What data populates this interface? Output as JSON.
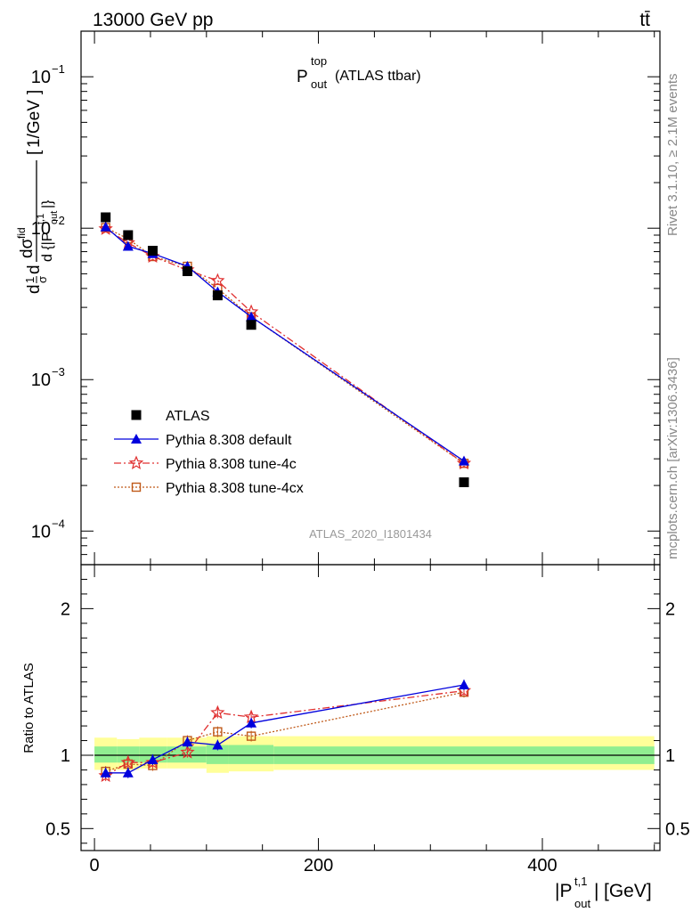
{
  "header": {
    "energy_label": "13000 GeV pp",
    "process_label": "tt̄"
  },
  "plot_title": {
    "main": "P",
    "sup": "top",
    "sub": "out",
    "suffix": "(ATLAS ttbar)"
  },
  "side_labels": {
    "rivet": "Rivet 3.1.10, ≥ 2.1M events",
    "mcplots": "mcplots.cern.ch [arXiv:1306.3436]"
  },
  "watermark": "ATLAS_2020_I1801434",
  "axes": {
    "ylabel_top": "1/GeV",
    "ylabel_ratio": "Ratio to ATLAS",
    "xlabel_unit": "[GeV]"
  },
  "chart_data": [
    {
      "type": "scatter",
      "scale_y": "log",
      "xlim": [
        -12,
        505
      ],
      "ylim": [
        6e-05,
        0.2
      ],
      "yticks": [
        {
          "value": 0.1,
          "label": "10^-1"
        },
        {
          "value": 0.01,
          "label": "10^-2"
        },
        {
          "value": 0.001,
          "label": "10^-3"
        },
        {
          "value": 0.0001,
          "label": "10^-4"
        }
      ],
      "legend_position": "bottom-left",
      "series": [
        {
          "name": "ATLAS",
          "color": "#000000",
          "marker": "square",
          "x": [
            10,
            30,
            52,
            83,
            110,
            140,
            330
          ],
          "y": [
            0.0118,
            0.009,
            0.0071,
            0.0052,
            0.0036,
            0.0023,
            0.00021
          ]
        },
        {
          "name": "Pythia 8.308 default",
          "color": "#0000dd",
          "marker": "triangle",
          "line": "solid",
          "x": [
            10,
            30,
            52,
            83,
            110,
            140,
            330
          ],
          "y": [
            0.0102,
            0.0076,
            0.0068,
            0.0056,
            0.0038,
            0.0026,
            0.00029
          ]
        },
        {
          "name": "Pythia 8.308 tune-4c",
          "color": "#e03030",
          "marker": "star",
          "line": "dashdot",
          "x": [
            10,
            30,
            52,
            83,
            110,
            140,
            330
          ],
          "y": [
            0.0099,
            0.008,
            0.0065,
            0.0053,
            0.0045,
            0.0028,
            0.00028
          ]
        },
        {
          "name": "Pythia 8.308 tune-4cx",
          "color": "#c05a1a",
          "marker": "open-square",
          "line": "dotted",
          "x": [
            10,
            30,
            52,
            83,
            110,
            140,
            330
          ],
          "y": [
            0.0101,
            0.0085,
            0.0065,
            0.0056,
            0.004,
            0.0026,
            0.00028
          ]
        }
      ]
    },
    {
      "type": "scatter",
      "xlim": [
        -12,
        505
      ],
      "ylim": [
        0.35,
        2.3
      ],
      "yticks": [
        0.5,
        1,
        2
      ],
      "xticks": [
        0,
        200,
        400
      ],
      "reference_line": 1,
      "bands": [
        {
          "x": [
            0,
            20
          ],
          "green": [
            0.95,
            1.06
          ],
          "yellow": [
            0.9,
            1.12
          ]
        },
        {
          "x": [
            20,
            40
          ],
          "green": [
            0.95,
            1.06
          ],
          "yellow": [
            0.9,
            1.11
          ]
        },
        {
          "x": [
            40,
            65
          ],
          "green": [
            0.95,
            1.06
          ],
          "yellow": [
            0.91,
            1.12
          ]
        },
        {
          "x": [
            65,
            100
          ],
          "green": [
            0.95,
            1.06
          ],
          "yellow": [
            0.91,
            1.12
          ]
        },
        {
          "x": [
            100,
            120
          ],
          "green": [
            0.94,
            1.07
          ],
          "yellow": [
            0.88,
            1.13
          ]
        },
        {
          "x": [
            120,
            160
          ],
          "green": [
            0.94,
            1.07
          ],
          "yellow": [
            0.89,
            1.13
          ]
        },
        {
          "x": [
            160,
            500
          ],
          "green": [
            0.94,
            1.06
          ],
          "yellow": [
            0.9,
            1.13
          ]
        }
      ],
      "series": [
        {
          "name": "Pythia 8.308 default",
          "color": "#0000dd",
          "marker": "triangle",
          "line": "solid",
          "x": [
            10,
            30,
            52,
            83,
            110,
            140,
            330
          ],
          "y": [
            0.88,
            0.88,
            0.97,
            1.09,
            1.07,
            1.22,
            1.48
          ]
        },
        {
          "name": "Pythia 8.308 tune-4c",
          "color": "#e03030",
          "marker": "star",
          "line": "dashdot",
          "x": [
            10,
            30,
            52,
            83,
            110,
            140,
            330
          ],
          "y": [
            0.86,
            0.95,
            0.95,
            1.02,
            1.29,
            1.26,
            1.44
          ]
        },
        {
          "name": "Pythia 8.308 tune-4cx",
          "color": "#c05a1a",
          "marker": "open-square",
          "line": "dotted",
          "x": [
            10,
            30,
            52,
            83,
            110,
            140,
            330
          ],
          "y": [
            0.89,
            0.94,
            0.93,
            1.1,
            1.16,
            1.13,
            1.43
          ]
        }
      ]
    }
  ]
}
